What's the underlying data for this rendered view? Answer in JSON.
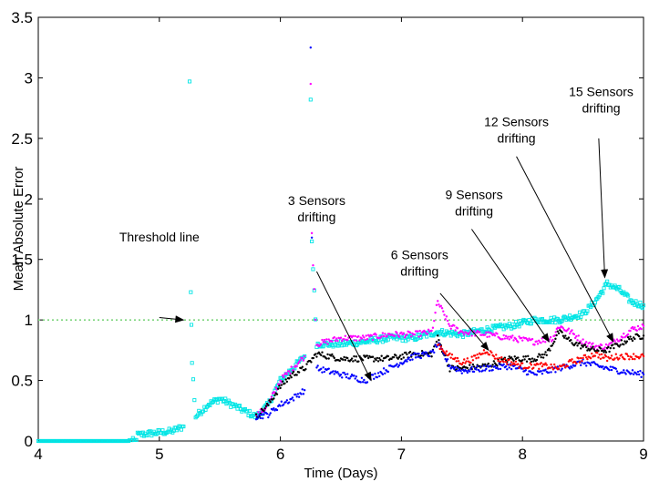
{
  "chart_data": {
    "type": "scatter",
    "xlabel": "Time (Days)",
    "ylabel": "Mean Absolute Error",
    "xlim": [
      4,
      9
    ],
    "ylim": [
      0,
      3.5
    ],
    "x_ticks": [
      4,
      5,
      6,
      7,
      8,
      9
    ],
    "y_ticks": [
      0,
      0.5,
      1,
      1.5,
      2,
      2.5,
      3,
      3.5
    ],
    "x_tick_labels": [
      "4",
      "5",
      "6",
      "7",
      "8",
      "9"
    ],
    "y_tick_labels": [
      "0",
      "0.5",
      "1",
      "1.5",
      "2",
      "2.5",
      "3",
      "3.5"
    ],
    "grid": false,
    "threshold": {
      "y": 1.0,
      "color": "#7fd67f",
      "style": "dotted"
    },
    "series": [
      {
        "color": "#00e5e5",
        "marker": "square",
        "points": [
          [
            4.0,
            0.0
          ],
          [
            4.4,
            0.0
          ],
          [
            4.8,
            0.0
          ],
          [
            4.82,
            0.05
          ],
          [
            4.9,
            0.06
          ],
          [
            5.0,
            0.07
          ],
          [
            5.1,
            0.08
          ],
          [
            5.2,
            0.12
          ],
          [
            5.25,
            2.97
          ],
          [
            5.26,
            1.25
          ],
          [
            5.27,
            0.65
          ],
          [
            5.3,
            0.2
          ],
          [
            5.4,
            0.3
          ],
          [
            5.5,
            0.35
          ],
          [
            5.6,
            0.3
          ],
          [
            5.7,
            0.25
          ],
          [
            5.8,
            0.2
          ],
          [
            5.9,
            0.3
          ],
          [
            6.0,
            0.5
          ],
          [
            6.1,
            0.6
          ],
          [
            6.2,
            0.7
          ],
          [
            6.25,
            2.82
          ],
          [
            6.26,
            1.65
          ],
          [
            6.3,
            0.8
          ],
          [
            6.5,
            0.8
          ],
          [
            6.7,
            0.82
          ],
          [
            6.9,
            0.85
          ],
          [
            7.1,
            0.85
          ],
          [
            7.3,
            0.9
          ],
          [
            7.5,
            0.88
          ],
          [
            7.7,
            0.92
          ],
          [
            7.9,
            0.95
          ],
          [
            8.1,
            1.0
          ],
          [
            8.3,
            1.0
          ],
          [
            8.5,
            1.05
          ],
          [
            8.6,
            1.15
          ],
          [
            8.7,
            1.3
          ],
          [
            8.8,
            1.25
          ],
          [
            8.9,
            1.15
          ],
          [
            9.0,
            1.12
          ]
        ]
      },
      {
        "color": "#ff00ff",
        "marker": "dot",
        "points": [
          [
            5.8,
            0.2
          ],
          [
            5.9,
            0.3
          ],
          [
            6.0,
            0.5
          ],
          [
            6.1,
            0.6
          ],
          [
            6.2,
            0.7
          ],
          [
            6.25,
            2.95
          ],
          [
            6.26,
            1.7
          ],
          [
            6.3,
            0.8
          ],
          [
            6.5,
            0.85
          ],
          [
            6.7,
            0.85
          ],
          [
            6.9,
            0.88
          ],
          [
            7.1,
            0.88
          ],
          [
            7.25,
            0.9
          ],
          [
            7.3,
            1.15
          ],
          [
            7.4,
            0.95
          ],
          [
            7.5,
            0.9
          ],
          [
            7.7,
            0.88
          ],
          [
            7.9,
            0.85
          ],
          [
            8.1,
            0.82
          ],
          [
            8.25,
            0.85
          ],
          [
            8.3,
            0.95
          ],
          [
            8.4,
            0.9
          ],
          [
            8.5,
            0.82
          ],
          [
            8.6,
            0.78
          ],
          [
            8.7,
            0.78
          ],
          [
            8.8,
            0.85
          ],
          [
            8.9,
            0.92
          ],
          [
            9.0,
            0.95
          ]
        ]
      },
      {
        "color": "#000000",
        "marker": "dot",
        "points": [
          [
            5.8,
            0.2
          ],
          [
            5.9,
            0.3
          ],
          [
            6.0,
            0.45
          ],
          [
            6.1,
            0.55
          ],
          [
            6.2,
            0.6
          ],
          [
            6.3,
            0.72
          ],
          [
            6.5,
            0.68
          ],
          [
            6.7,
            0.68
          ],
          [
            6.9,
            0.68
          ],
          [
            7.1,
            0.72
          ],
          [
            7.25,
            0.72
          ],
          [
            7.3,
            0.85
          ],
          [
            7.4,
            0.6
          ],
          [
            7.5,
            0.6
          ],
          [
            7.7,
            0.62
          ],
          [
            7.9,
            0.68
          ],
          [
            8.1,
            0.68
          ],
          [
            8.2,
            0.72
          ],
          [
            8.3,
            0.9
          ],
          [
            8.4,
            0.82
          ],
          [
            8.5,
            0.78
          ],
          [
            8.6,
            0.75
          ],
          [
            8.7,
            0.75
          ],
          [
            8.8,
            0.8
          ],
          [
            8.9,
            0.85
          ],
          [
            9.0,
            0.87
          ]
        ]
      },
      {
        "color": "#0000ff",
        "marker": "dot",
        "points": [
          [
            5.8,
            0.2
          ],
          [
            5.9,
            0.22
          ],
          [
            6.0,
            0.3
          ],
          [
            6.1,
            0.35
          ],
          [
            6.2,
            0.42
          ],
          [
            6.25,
            3.25
          ],
          [
            6.26,
            1.68
          ],
          [
            6.3,
            0.6
          ],
          [
            6.5,
            0.55
          ],
          [
            6.7,
            0.5
          ],
          [
            6.9,
            0.6
          ],
          [
            7.1,
            0.7
          ],
          [
            7.25,
            0.72
          ],
          [
            7.3,
            0.8
          ],
          [
            7.4,
            0.62
          ],
          [
            7.5,
            0.58
          ],
          [
            7.7,
            0.6
          ],
          [
            7.9,
            0.62
          ],
          [
            8.1,
            0.55
          ],
          [
            8.3,
            0.6
          ],
          [
            8.5,
            0.65
          ],
          [
            8.7,
            0.6
          ],
          [
            8.8,
            0.58
          ],
          [
            9.0,
            0.55
          ]
        ]
      },
      {
        "color": "#ff0000",
        "marker": "dot",
        "points": [
          [
            7.3,
            0.8
          ],
          [
            7.4,
            0.7
          ],
          [
            7.5,
            0.65
          ],
          [
            7.6,
            0.68
          ],
          [
            7.7,
            0.75
          ],
          [
            7.8,
            0.68
          ],
          [
            7.9,
            0.65
          ],
          [
            8.0,
            0.62
          ],
          [
            8.2,
            0.62
          ],
          [
            8.3,
            0.6
          ],
          [
            8.4,
            0.65
          ],
          [
            8.5,
            0.68
          ],
          [
            8.6,
            0.72
          ],
          [
            8.7,
            0.68
          ],
          [
            8.8,
            0.7
          ],
          [
            9.0,
            0.7
          ]
        ]
      }
    ],
    "annotations": [
      {
        "lines": [
          "Threshold line"
        ],
        "tx": 5.0,
        "ty": 1.65,
        "ax": 5.0,
        "ay": 1.02,
        "hx": 5.2,
        "hy": 1.0
      },
      {
        "lines": [
          "3 Sensors",
          "drifting"
        ],
        "tx": 6.3,
        "ty": 1.95,
        "ax": 6.3,
        "ay": 1.4,
        "hx": 6.75,
        "hy": 0.5
      },
      {
        "lines": [
          "6 Sensors",
          "drifting"
        ],
        "tx": 7.15,
        "ty": 1.5,
        "ax": 7.32,
        "ay": 1.22,
        "hx": 7.72,
        "hy": 0.75
      },
      {
        "lines": [
          "9 Sensors",
          "drifting"
        ],
        "tx": 7.6,
        "ty": 2.0,
        "ax": 7.58,
        "ay": 1.75,
        "hx": 8.22,
        "hy": 0.82
      },
      {
        "lines": [
          "12 Sensors",
          "drifting"
        ],
        "tx": 7.95,
        "ty": 2.6,
        "ax": 7.95,
        "ay": 2.35,
        "hx": 8.75,
        "hy": 0.82
      },
      {
        "lines": [
          "15 Sensors",
          "drifting"
        ],
        "tx": 8.65,
        "ty": 2.85,
        "ax": 8.63,
        "ay": 2.5,
        "hx": 8.68,
        "hy": 1.35
      }
    ]
  }
}
